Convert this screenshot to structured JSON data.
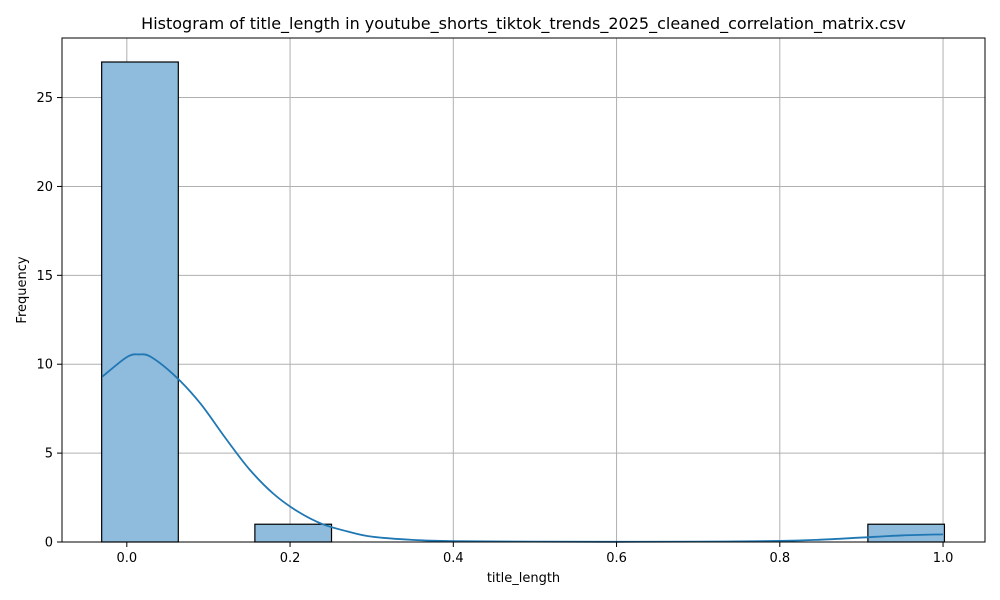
{
  "chart_data": {
    "type": "bar",
    "title": "Histogram of title_length in youtube_shorts_tiktok_trends_2025_cleaned_correlation_matrix.csv",
    "xlabel": "title_length",
    "ylabel": "Frequency",
    "xlim": [
      -0.0794,
      1.0514
    ],
    "ylim": [
      0,
      28.35
    ],
    "xticks": [
      0.0,
      0.2,
      0.4,
      0.6,
      0.8,
      1.0
    ],
    "xtick_labels": [
      "0.0",
      "0.2",
      "0.4",
      "0.6",
      "0.8",
      "1.0"
    ],
    "yticks": [
      0,
      5,
      10,
      15,
      20,
      25
    ],
    "ytick_labels": [
      "0",
      "5",
      "10",
      "15",
      "20",
      "25"
    ],
    "grid": true,
    "legend": "none",
    "bar_color": "#8fbbdc",
    "line_color": "#1f77b4",
    "bins": [
      {
        "x0": -0.0308,
        "x1": 0.0631,
        "count": 27
      },
      {
        "x0": 0.0631,
        "x1": 0.1569,
        "count": 0
      },
      {
        "x0": 0.1569,
        "x1": 0.2508,
        "count": 1
      },
      {
        "x0": 0.2508,
        "x1": 0.3447,
        "count": 0
      },
      {
        "x0": 0.3447,
        "x1": 0.4385,
        "count": 0
      },
      {
        "x0": 0.4385,
        "x1": 0.5324,
        "count": 0
      },
      {
        "x0": 0.5324,
        "x1": 0.6263,
        "count": 0
      },
      {
        "x0": 0.6263,
        "x1": 0.7201,
        "count": 0
      },
      {
        "x0": 0.7201,
        "x1": 0.814,
        "count": 0
      },
      {
        "x0": 0.814,
        "x1": 0.9079,
        "count": 0
      },
      {
        "x0": 0.9079,
        "x1": 1.0017,
        "count": 1
      }
    ],
    "kde": {
      "x": [
        -0.03,
        0.0,
        0.015,
        0.03,
        0.06,
        0.09,
        0.12,
        0.15,
        0.18,
        0.21,
        0.24,
        0.27,
        0.3,
        0.35,
        0.4,
        0.5,
        0.6,
        0.7,
        0.8,
        0.85,
        0.9,
        0.95,
        1.0
      ],
      "y": [
        9.3,
        10.4,
        10.55,
        10.4,
        9.3,
        7.8,
        5.9,
        4.1,
        2.7,
        1.7,
        1.0,
        0.6,
        0.3,
        0.12,
        0.05,
        0.02,
        0.01,
        0.02,
        0.06,
        0.13,
        0.25,
        0.37,
        0.43
      ]
    }
  }
}
